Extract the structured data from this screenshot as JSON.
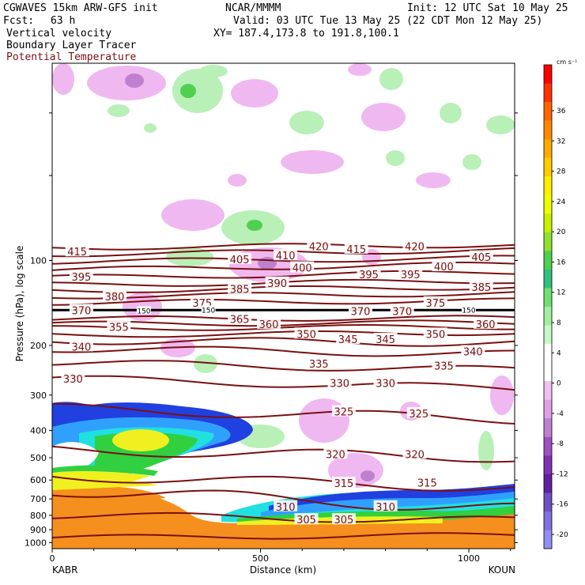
{
  "header": {
    "model": "CGWAVES 15km ARW-GFS init",
    "org": "NCAR/MMMM",
    "init": "Init: 12 UTC Sat 10 May 25",
    "fcst_label": "Fcst:",
    "fcst_value": "63 h",
    "valid": "Valid: 03 UTC Tue 13 May 25 (22 CDT Mon 12 May 25)",
    "field1": "Vertical velocity",
    "field2": "Boundary Layer Tracer",
    "field3": "Potential Temperature",
    "xy": "XY= 187.4,173.8 to 191.8,100.1"
  },
  "colors": {
    "theta_line": "#7a1010",
    "field3_text": "#7a1010",
    "bl_tracer_orange": "#f5901e",
    "bl_yellow": "#f0f020",
    "bl_green": "#30d040",
    "bl_cyan": "#20e0e0",
    "bl_lightblue": "#30a0ff",
    "bl_blue": "#2040e0",
    "w_up_light": "#b8f0b8",
    "w_down_light": "#f0b8f0",
    "w_down_mid": "#c080d0"
  },
  "chart_data": {
    "type": "contour-cross-section",
    "xlabel": "Distance (km)",
    "ylabel": "Pressure (hPa), log scale",
    "x_ticks": [
      "0",
      "500",
      "1000"
    ],
    "x_range": [
      0,
      1110
    ],
    "x_endpoints": {
      "left": "KABR",
      "right": "KOUN"
    },
    "y_ticks": [
      "100",
      "200",
      "300",
      "400",
      "500",
      "600",
      "700",
      "800",
      "900",
      "1000"
    ],
    "y_range": [
      1050,
      20
    ],
    "y_scale": "log",
    "colorbar": {
      "unit": "cm s⁻¹",
      "labels": [
        "36",
        "32",
        "28",
        "24",
        "20",
        "16",
        "12",
        "8",
        "4",
        "0",
        "-4",
        "-8",
        "-12",
        "-16",
        "-20"
      ],
      "colors": [
        "#ff0000",
        "#ff3300",
        "#ff6600",
        "#ff8800",
        "#ffaa00",
        "#ffcc00",
        "#ffee00",
        "#eeff00",
        "#c8f000",
        "#90e030",
        "#50d050",
        "#30c080",
        "#70e070",
        "#a0f0a0",
        "#c8f8c8",
        "#ffffff",
        "#ffffff",
        "#f0c0f0",
        "#e0a0e8",
        "#c080d0",
        "#a050c0",
        "#8030b0",
        "#6020a0",
        "#7050c0",
        "#8070e0",
        "#9090f0"
      ]
    },
    "theta_labels": [
      {
        "text": "415",
        "x": 60,
        "p": 93
      },
      {
        "text": "420",
        "x": 640,
        "p": 89
      },
      {
        "text": "415",
        "x": 730,
        "p": 91
      },
      {
        "text": "420",
        "x": 870,
        "p": 89
      },
      {
        "text": "405",
        "x": 450,
        "p": 99
      },
      {
        "text": "410",
        "x": 560,
        "p": 96
      },
      {
        "text": "405",
        "x": 1030,
        "p": 97
      },
      {
        "text": "400",
        "x": 600,
        "p": 106
      },
      {
        "text": "400",
        "x": 940,
        "p": 105
      },
      {
        "text": "395",
        "x": 70,
        "p": 114
      },
      {
        "text": "395",
        "x": 760,
        "p": 112
      },
      {
        "text": "395",
        "x": 860,
        "p": 112
      },
      {
        "text": "390",
        "x": 540,
        "p": 120
      },
      {
        "text": "385",
        "x": 450,
        "p": 126
      },
      {
        "text": "385",
        "x": 1030,
        "p": 124
      },
      {
        "text": "380",
        "x": 150,
        "p": 134
      },
      {
        "text": "375",
        "x": 360,
        "p": 141
      },
      {
        "text": "375",
        "x": 920,
        "p": 141
      },
      {
        "text": "370",
        "x": 70,
        "p": 150
      },
      {
        "text": "370",
        "x": 740,
        "p": 151
      },
      {
        "text": "370",
        "x": 840,
        "p": 151
      },
      {
        "text": "365",
        "x": 450,
        "p": 161
      },
      {
        "text": "360",
        "x": 520,
        "p": 168
      },
      {
        "text": "360",
        "x": 1040,
        "p": 168
      },
      {
        "text": "355",
        "x": 160,
        "p": 172
      },
      {
        "text": "350",
        "x": 610,
        "p": 182
      },
      {
        "text": "350",
        "x": 920,
        "p": 182
      },
      {
        "text": "345",
        "x": 710,
        "p": 190
      },
      {
        "text": "345",
        "x": 800,
        "p": 190
      },
      {
        "text": "340",
        "x": 70,
        "p": 202
      },
      {
        "text": "340",
        "x": 1010,
        "p": 210
      },
      {
        "text": "335",
        "x": 640,
        "p": 232
      },
      {
        "text": "335",
        "x": 940,
        "p": 236
      },
      {
        "text": "330",
        "x": 50,
        "p": 262
      },
      {
        "text": "330",
        "x": 690,
        "p": 272
      },
      {
        "text": "330",
        "x": 800,
        "p": 272
      },
      {
        "text": "325",
        "x": 700,
        "p": 343
      },
      {
        "text": "325",
        "x": 880,
        "p": 348
      },
      {
        "text": "320",
        "x": 680,
        "p": 485
      },
      {
        "text": "320",
        "x": 870,
        "p": 485
      },
      {
        "text": "315",
        "x": 700,
        "p": 615
      },
      {
        "text": "315",
        "x": 900,
        "p": 612
      },
      {
        "text": "310",
        "x": 560,
        "p": 745
      },
      {
        "text": "310",
        "x": 800,
        "p": 745
      },
      {
        "text": "305",
        "x": 610,
        "p": 828
      },
      {
        "text": "305",
        "x": 700,
        "p": 828
      }
    ],
    "small_labels": [
      {
        "text": "150",
        "x": 220,
        "p": 151
      },
      {
        "text": "150",
        "x": 375,
        "p": 150
      },
      {
        "text": "150",
        "x": 1000,
        "p": 150
      }
    ]
  }
}
